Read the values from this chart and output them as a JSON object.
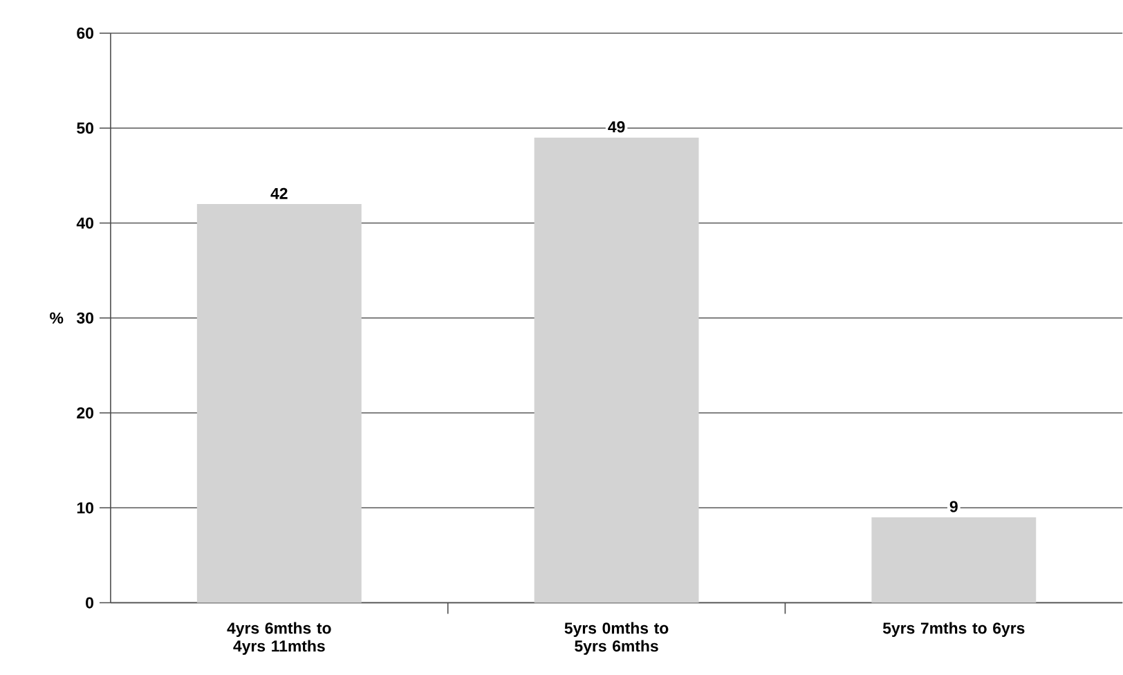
{
  "chart_data": {
    "type": "bar",
    "ylabel": "%",
    "categories": [
      "4yrs 6mths to 4yrs 11mths",
      "5yrs 0mths to 5yrs 6mths",
      "5yrs 7mths to 6yrs"
    ],
    "values": [
      42,
      49,
      9
    ],
    "color": "#d3d3d3",
    "ylim": [
      0,
      60
    ],
    "yticks": [
      0,
      10,
      20,
      30,
      40,
      50,
      60
    ],
    "grid": "y",
    "data_labels": true
  }
}
